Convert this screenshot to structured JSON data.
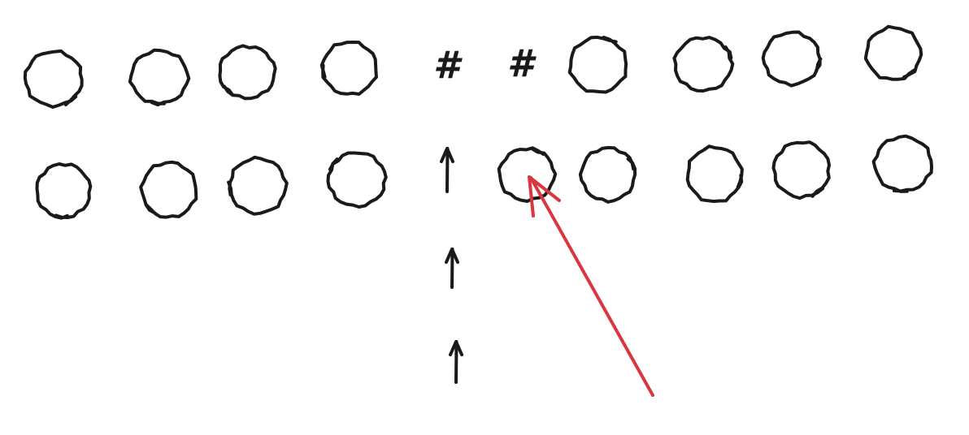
{
  "colors": {
    "ink": "#1a1a1a",
    "highlight": "#d9363e",
    "background": "#ffffff"
  },
  "rows": [
    {
      "id": "top",
      "items": [
        {
          "kind": "circle"
        },
        {
          "kind": "circle"
        },
        {
          "kind": "circle"
        },
        {
          "kind": "circle"
        },
        {
          "kind": "hash",
          "text": "#"
        },
        {
          "kind": "hash",
          "text": "#"
        },
        {
          "kind": "circle"
        },
        {
          "kind": "circle"
        },
        {
          "kind": "circle"
        },
        {
          "kind": "circle"
        }
      ]
    },
    {
      "id": "bottom",
      "items": [
        {
          "kind": "circle"
        },
        {
          "kind": "circle"
        },
        {
          "kind": "circle"
        },
        {
          "kind": "circle"
        },
        {
          "kind": "arrow-up"
        },
        {
          "kind": "circle",
          "highlighted": true
        },
        {
          "kind": "circle"
        },
        {
          "kind": "circle"
        },
        {
          "kind": "circle"
        },
        {
          "kind": "circle"
        }
      ]
    }
  ],
  "column_arrows": {
    "count": 2,
    "icon": "up-arrow-icon"
  },
  "pointer": {
    "icon": "red-arrow-icon",
    "color": "#d9363e"
  }
}
